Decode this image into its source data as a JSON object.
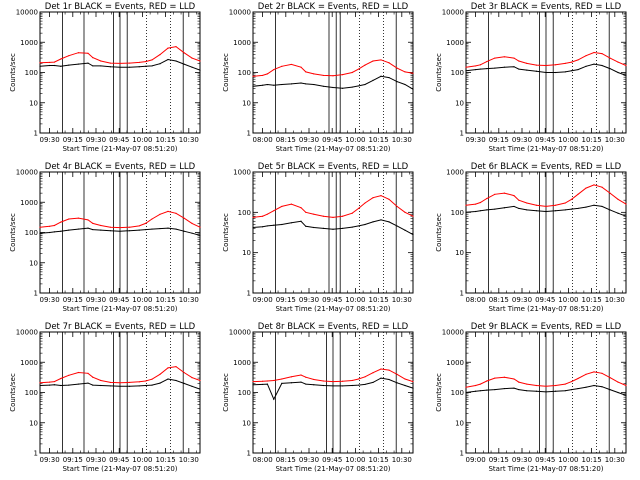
{
  "figure": {
    "time_ticks": [
      "09:30",
      "09:15",
      "09:30",
      "09:45",
      "10:00",
      "10:15",
      "10:30"
    ],
    "xlabel": "Start Time (21-May-07 08:51:20)",
    "ylabel": "Counts/sec",
    "colors": {
      "events": "#000000",
      "lld": "#ff0000",
      "frame": "#000000"
    }
  },
  "chart_data": [
    {
      "type": "line",
      "title": "Det 1r BLACK = Events, RED = LLD",
      "xlabel": "Start Time (21-May-07 08:51:20)",
      "ylabel": "Counts/sec",
      "x_ticks": [
        "09:30",
        "09:15",
        "09:30",
        "09:45",
        "10:00",
        "10:15",
        "10:30"
      ],
      "y_scale": "log",
      "ylim": [
        1,
        10000
      ],
      "y_ticks": [
        "1",
        "10",
        "100",
        "1000",
        "10000"
      ],
      "x": [
        0.0,
        0.06,
        0.09,
        0.13,
        0.18,
        0.24,
        0.3,
        0.33,
        0.38,
        0.44,
        0.5,
        0.56,
        0.62,
        0.66,
        0.7,
        0.75,
        0.8,
        0.85,
        0.9,
        0.95,
        1.0
      ],
      "series": [
        {
          "name": "Events",
          "color": "#000000",
          "values": [
            160,
            170,
            170,
            160,
            175,
            190,
            205,
            165,
            165,
            155,
            150,
            150,
            155,
            160,
            165,
            195,
            270,
            240,
            190,
            150,
            120
          ]
        },
        {
          "name": "LLD",
          "color": "#ff0000",
          "values": [
            210,
            215,
            220,
            280,
            360,
            450,
            430,
            310,
            240,
            205,
            200,
            205,
            215,
            230,
            260,
            390,
            640,
            720,
            450,
            300,
            240
          ]
        }
      ],
      "vlines": [
        0.14,
        0.275,
        0.46,
        0.5,
        0.545,
        0.895
      ],
      "dotted": [
        0.665,
        0.815
      ]
    },
    {
      "type": "line",
      "title": "Det 2r BLACK = Events, RED = LLD",
      "xlabel": "Start Time (21-May-07 08:51:20)",
      "ylabel": "Counts/sec",
      "x_ticks": [
        "08:00",
        "08:15",
        "09:30",
        "09:45",
        "10:00",
        "10:15",
        "10:30"
      ],
      "y_scale": "log",
      "ylim": [
        1,
        10000
      ],
      "y_ticks": [
        "1",
        "10",
        "100",
        "1000",
        "10000"
      ],
      "x": [
        0.0,
        0.06,
        0.09,
        0.13,
        0.18,
        0.24,
        0.3,
        0.33,
        0.38,
        0.44,
        0.5,
        0.56,
        0.62,
        0.66,
        0.7,
        0.75,
        0.8,
        0.85,
        0.9,
        0.95,
        1.0
      ],
      "series": [
        {
          "name": "Events",
          "color": "#000000",
          "values": [
            35,
            38,
            40,
            38,
            40,
            42,
            45,
            42,
            40,
            35,
            32,
            30,
            33,
            36,
            40,
            55,
            75,
            68,
            50,
            40,
            28
          ]
        },
        {
          "name": "LLD",
          "color": "#ff0000",
          "values": [
            75,
            80,
            90,
            125,
            160,
            185,
            150,
            105,
            90,
            80,
            78,
            85,
            100,
            130,
            175,
            240,
            260,
            210,
            140,
            105,
            95
          ]
        }
      ],
      "vlines": [
        0.14,
        0.475,
        0.52,
        0.545,
        0.895
      ],
      "dotted": [
        0.665,
        0.815
      ]
    },
    {
      "type": "line",
      "title": "Det 3r BLACK = Events, RED = LLD",
      "xlabel": "Start Time (21-May-07 08:51:20)",
      "ylabel": "Counts/sec",
      "x_ticks": [
        "09:30",
        "09:15",
        "09:30",
        "09:45",
        "10:00",
        "10:15",
        "10:30"
      ],
      "y_scale": "log",
      "ylim": [
        1,
        10000
      ],
      "y_ticks": [
        "1",
        "10",
        "100",
        "1000",
        "10000"
      ],
      "x": [
        0.0,
        0.06,
        0.09,
        0.13,
        0.18,
        0.24,
        0.3,
        0.33,
        0.38,
        0.44,
        0.5,
        0.56,
        0.62,
        0.66,
        0.7,
        0.75,
        0.8,
        0.85,
        0.9,
        0.95,
        1.0
      ],
      "series": [
        {
          "name": "Events",
          "color": "#000000",
          "values": [
            115,
            125,
            130,
            135,
            140,
            150,
            155,
            130,
            120,
            110,
            100,
            100,
            105,
            115,
            125,
            160,
            190,
            170,
            135,
            100,
            80
          ]
        },
        {
          "name": "LLD",
          "color": "#ff0000",
          "values": [
            150,
            165,
            180,
            230,
            300,
            330,
            300,
            240,
            200,
            175,
            170,
            180,
            200,
            220,
            260,
            360,
            460,
            420,
            300,
            220,
            170
          ]
        }
      ],
      "vlines": [
        0.14,
        0.46,
        0.5,
        0.545,
        0.895
      ],
      "dotted": [
        0.665,
        0.815
      ]
    },
    {
      "type": "line",
      "title": "Det 4r BLACK = Events, RED = LLD",
      "xlabel": "Start Time (21-May-07 08:51:20)",
      "ylabel": "Counts/sec",
      "x_ticks": [
        "09:30",
        "09:15",
        "09:30",
        "09:45",
        "10:00",
        "10:15",
        "10:30"
      ],
      "y_scale": "log",
      "ylim": [
        1,
        10000
      ],
      "y_ticks": [
        "1",
        "10",
        "100",
        "1000",
        "10000"
      ],
      "x": [
        0.0,
        0.06,
        0.09,
        0.13,
        0.18,
        0.24,
        0.3,
        0.33,
        0.38,
        0.44,
        0.5,
        0.56,
        0.62,
        0.66,
        0.7,
        0.75,
        0.8,
        0.85,
        0.9,
        0.95,
        1.0
      ],
      "series": [
        {
          "name": "Events",
          "color": "#000000",
          "values": [
            95,
            100,
            105,
            110,
            120,
            130,
            140,
            125,
            120,
            115,
            110,
            115,
            120,
            125,
            130,
            135,
            140,
            130,
            110,
            95,
            80
          ]
        },
        {
          "name": "LLD",
          "color": "#ff0000",
          "values": [
            150,
            160,
            170,
            220,
            280,
            300,
            260,
            200,
            170,
            150,
            145,
            150,
            165,
            200,
            280,
            400,
            500,
            430,
            300,
            200,
            150
          ]
        }
      ],
      "vlines": [
        0.14,
        0.275,
        0.46,
        0.5,
        0.545,
        0.895
      ],
      "dotted": [
        0.665,
        0.815
      ]
    },
    {
      "type": "line",
      "title": "Det 5r BLACK = Events, RED = LLD",
      "xlabel": "Start Time (21-May-07 08:51:20)",
      "ylabel": "Counts/sec",
      "x_ticks": [
        "09:00",
        "09:15",
        "09:30",
        "09:45",
        "10:00",
        "10:15",
        "10:30"
      ],
      "y_scale": "log",
      "ylim": [
        1,
        1000
      ],
      "y_ticks": [
        "1",
        "10",
        "100",
        "1000"
      ],
      "x": [
        0.0,
        0.06,
        0.09,
        0.13,
        0.18,
        0.24,
        0.3,
        0.33,
        0.38,
        0.44,
        0.5,
        0.56,
        0.62,
        0.66,
        0.7,
        0.75,
        0.8,
        0.85,
        0.9,
        0.95,
        1.0
      ],
      "series": [
        {
          "name": "Events",
          "color": "#000000",
          "values": [
            42,
            44,
            46,
            48,
            50,
            55,
            60,
            45,
            42,
            40,
            38,
            40,
            43,
            46,
            50,
            58,
            65,
            58,
            46,
            36,
            28
          ]
        },
        {
          "name": "LLD",
          "color": "#ff0000",
          "values": [
            75,
            80,
            90,
            110,
            140,
            160,
            130,
            100,
            90,
            80,
            75,
            80,
            95,
            125,
            170,
            230,
            260,
            210,
            140,
            100,
            80
          ]
        }
      ],
      "vlines": [
        0.14,
        0.475,
        0.52,
        0.545,
        0.895
      ],
      "dotted": [
        0.665,
        0.815
      ]
    },
    {
      "type": "line",
      "title": "Det 6r BLACK = Events, RED = LLD",
      "xlabel": "Start Time (21-May-07 08:51:20)",
      "ylabel": "Counts/sec",
      "x_ticks": [
        "08:00",
        "08:15",
        "09:30",
        "09:45",
        "10:00",
        "10:15",
        "10:30"
      ],
      "y_scale": "log",
      "ylim": [
        1,
        1000
      ],
      "y_ticks": [
        "1",
        "10",
        "100",
        "1000"
      ],
      "x": [
        0.0,
        0.06,
        0.09,
        0.13,
        0.18,
        0.24,
        0.3,
        0.33,
        0.38,
        0.44,
        0.5,
        0.56,
        0.62,
        0.66,
        0.7,
        0.75,
        0.8,
        0.85,
        0.9,
        0.95,
        1.0
      ],
      "series": [
        {
          "name": "Events",
          "color": "#000000",
          "values": [
            100,
            105,
            110,
            115,
            120,
            130,
            140,
            125,
            115,
            110,
            105,
            110,
            115,
            120,
            125,
            135,
            150,
            140,
            115,
            95,
            80
          ]
        },
        {
          "name": "LLD",
          "color": "#ff0000",
          "values": [
            150,
            160,
            175,
            220,
            280,
            300,
            260,
            200,
            170,
            150,
            140,
            150,
            170,
            210,
            280,
            400,
            480,
            420,
            300,
            210,
            160
          ]
        }
      ],
      "vlines": [
        0.14,
        0.46,
        0.5,
        0.545,
        0.895
      ],
      "dotted": [
        0.665,
        0.815
      ]
    },
    {
      "type": "line",
      "title": "Det 7r BLACK = Events, RED = LLD",
      "xlabel": "Start Time (21-May-07 08:51:20)",
      "ylabel": "Counts/sec",
      "x_ticks": [
        "09:30",
        "09:15",
        "09:30",
        "09:45",
        "10:00",
        "10:15",
        "10:30"
      ],
      "y_scale": "log",
      "ylim": [
        1,
        10000
      ],
      "y_ticks": [
        "1",
        "10",
        "100",
        "1000",
        "10000"
      ],
      "x": [
        0.0,
        0.06,
        0.09,
        0.13,
        0.18,
        0.24,
        0.3,
        0.33,
        0.38,
        0.44,
        0.5,
        0.56,
        0.62,
        0.66,
        0.7,
        0.75,
        0.8,
        0.85,
        0.9,
        0.95,
        1.0
      ],
      "series": [
        {
          "name": "Events",
          "color": "#000000",
          "values": [
            170,
            175,
            180,
            170,
            175,
            190,
            205,
            175,
            170,
            165,
            160,
            160,
            165,
            170,
            175,
            205,
            280,
            250,
            200,
            160,
            130
          ]
        },
        {
          "name": "LLD",
          "color": "#ff0000",
          "values": [
            210,
            220,
            230,
            290,
            370,
            460,
            430,
            320,
            250,
            215,
            210,
            215,
            225,
            240,
            275,
            400,
            650,
            720,
            460,
            310,
            250
          ]
        }
      ],
      "vlines": [
        0.14,
        0.275,
        0.46,
        0.5,
        0.545,
        0.895
      ],
      "dotted": [
        0.665,
        0.815
      ]
    },
    {
      "type": "line",
      "title": "Det 8r BLACK = Events, RED = LLD",
      "xlabel": "Start Time (21-May-07 08:51:20)",
      "ylabel": "Counts/sec",
      "x_ticks": [
        "08:00",
        "08:15",
        "09:30",
        "09:45",
        "10:00",
        "10:15",
        "10:30"
      ],
      "y_scale": "log",
      "ylim": [
        1,
        10000
      ],
      "y_ticks": [
        "1",
        "10",
        "100",
        "1000",
        "10000"
      ],
      "x": [
        0.0,
        0.06,
        0.09,
        0.13,
        0.18,
        0.24,
        0.3,
        0.33,
        0.38,
        0.44,
        0.5,
        0.56,
        0.62,
        0.66,
        0.7,
        0.75,
        0.8,
        0.85,
        0.9,
        0.95,
        1.0
      ],
      "series": [
        {
          "name": "Events",
          "color": "#000000",
          "values": [
            180,
            185,
            190,
            60,
            200,
            210,
            220,
            190,
            180,
            170,
            165,
            165,
            170,
            175,
            185,
            215,
            300,
            270,
            210,
            170,
            140
          ]
        },
        {
          "name": "LLD",
          "color": "#ff0000",
          "values": [
            230,
            235,
            240,
            250,
            280,
            330,
            380,
            320,
            270,
            240,
            230,
            235,
            250,
            280,
            330,
            450,
            600,
            550,
            400,
            280,
            230
          ]
        }
      ],
      "vlines": [
        0.14,
        0.46,
        0.5,
        0.545,
        0.895
      ],
      "dotted": [
        0.665,
        0.815
      ]
    },
    {
      "type": "line",
      "title": "Det 9r BLACK = Events, RED = LLD",
      "xlabel": "Start Time (21-May-07 08:51:20)",
      "ylabel": "Counts/sec",
      "x_ticks": [
        "09:00",
        "09:15",
        "09:30",
        "09:45",
        "10:00",
        "10:15",
        "10:30"
      ],
      "y_scale": "log",
      "ylim": [
        1,
        10000
      ],
      "y_ticks": [
        "1",
        "10",
        "100",
        "1000",
        "10000"
      ],
      "x": [
        0.0,
        0.06,
        0.09,
        0.13,
        0.18,
        0.24,
        0.3,
        0.33,
        0.38,
        0.44,
        0.5,
        0.56,
        0.62,
        0.66,
        0.7,
        0.75,
        0.8,
        0.85,
        0.9,
        0.95,
        1.0
      ],
      "series": [
        {
          "name": "Events",
          "color": "#000000",
          "values": [
            100,
            110,
            115,
            120,
            125,
            135,
            140,
            125,
            115,
            110,
            105,
            110,
            115,
            125,
            135,
            150,
            170,
            155,
            125,
            100,
            80
          ]
        },
        {
          "name": "LLD",
          "color": "#ff0000",
          "values": [
            150,
            170,
            190,
            240,
            300,
            320,
            280,
            220,
            190,
            170,
            160,
            170,
            190,
            230,
            290,
            400,
            480,
            430,
            310,
            220,
            170
          ]
        }
      ],
      "vlines": [
        0.14,
        0.46,
        0.5,
        0.545,
        0.895
      ],
      "dotted": [
        0.665,
        0.815
      ]
    }
  ]
}
